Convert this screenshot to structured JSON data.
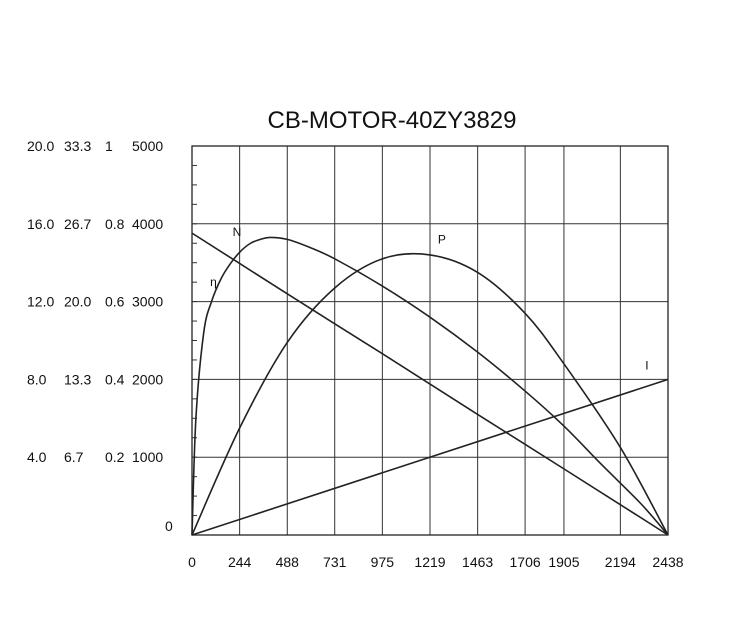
{
  "chart_data": {
    "type": "line",
    "title": "CB-MOTOR-40ZY3829",
    "x_ticks": [
      "0",
      "244",
      "488",
      "731",
      "975",
      "1219",
      "1463",
      "1706",
      "1905",
      "2194",
      "2438"
    ],
    "x_values": [
      0,
      244,
      488,
      731,
      975,
      1219,
      1463,
      1706,
      1905,
      2194,
      2438
    ],
    "xlim": [
      0,
      2438
    ],
    "y_axes": [
      {
        "ticks": [
          "4.0",
          "8.0",
          "12.0",
          "16.0",
          "20.0"
        ],
        "ylim": [
          0,
          20
        ]
      },
      {
        "ticks": [
          "6.7",
          "13.3",
          "20.0",
          "26.7",
          "33.3"
        ],
        "ylim": [
          0,
          33.3
        ]
      },
      {
        "ticks": [
          "0.2",
          "0.4",
          "0.6",
          "0.8",
          "1"
        ],
        "ylim": [
          0,
          1
        ]
      },
      {
        "ticks": [
          "1000",
          "2000",
          "3000",
          "4000",
          "5000"
        ],
        "ylim": [
          0,
          5000
        ]
      }
    ],
    "y_zero_label": "0",
    "grid": true,
    "series": [
      {
        "name": "N",
        "axis": 3,
        "x": [
          0,
          244,
          488,
          731,
          975,
          1219,
          1463,
          1706,
          1905,
          2194,
          2438
        ],
        "values": [
          3880,
          3490,
          3100,
          2715,
          2330,
          1940,
          1550,
          1165,
          850,
          390,
          0
        ]
      },
      {
        "name": "η",
        "axis": 2,
        "x": [
          0,
          20,
          60,
          100,
          150,
          200,
          250,
          300,
          350,
          400,
          488,
          600,
          731,
          975,
          1219,
          1463,
          1706,
          1905,
          2100,
          2300,
          2438
        ],
        "values": [
          0,
          0.3,
          0.52,
          0.6,
          0.66,
          0.7,
          0.73,
          0.75,
          0.76,
          0.765,
          0.76,
          0.74,
          0.71,
          0.64,
          0.56,
          0.47,
          0.37,
          0.28,
          0.18,
          0.08,
          0
        ]
      },
      {
        "name": "P",
        "axis": 0,
        "x": [
          0,
          244,
          488,
          731,
          975,
          1219,
          1463,
          1706,
          1905,
          2194,
          2438
        ],
        "values": [
          0,
          5.5,
          9.9,
          12.7,
          14.2,
          14.4,
          13.5,
          11.4,
          8.8,
          4.5,
          0
        ]
      },
      {
        "name": "I",
        "axis": 0,
        "x": [
          0,
          2438
        ],
        "values": [
          0,
          8.0
        ]
      }
    ]
  }
}
